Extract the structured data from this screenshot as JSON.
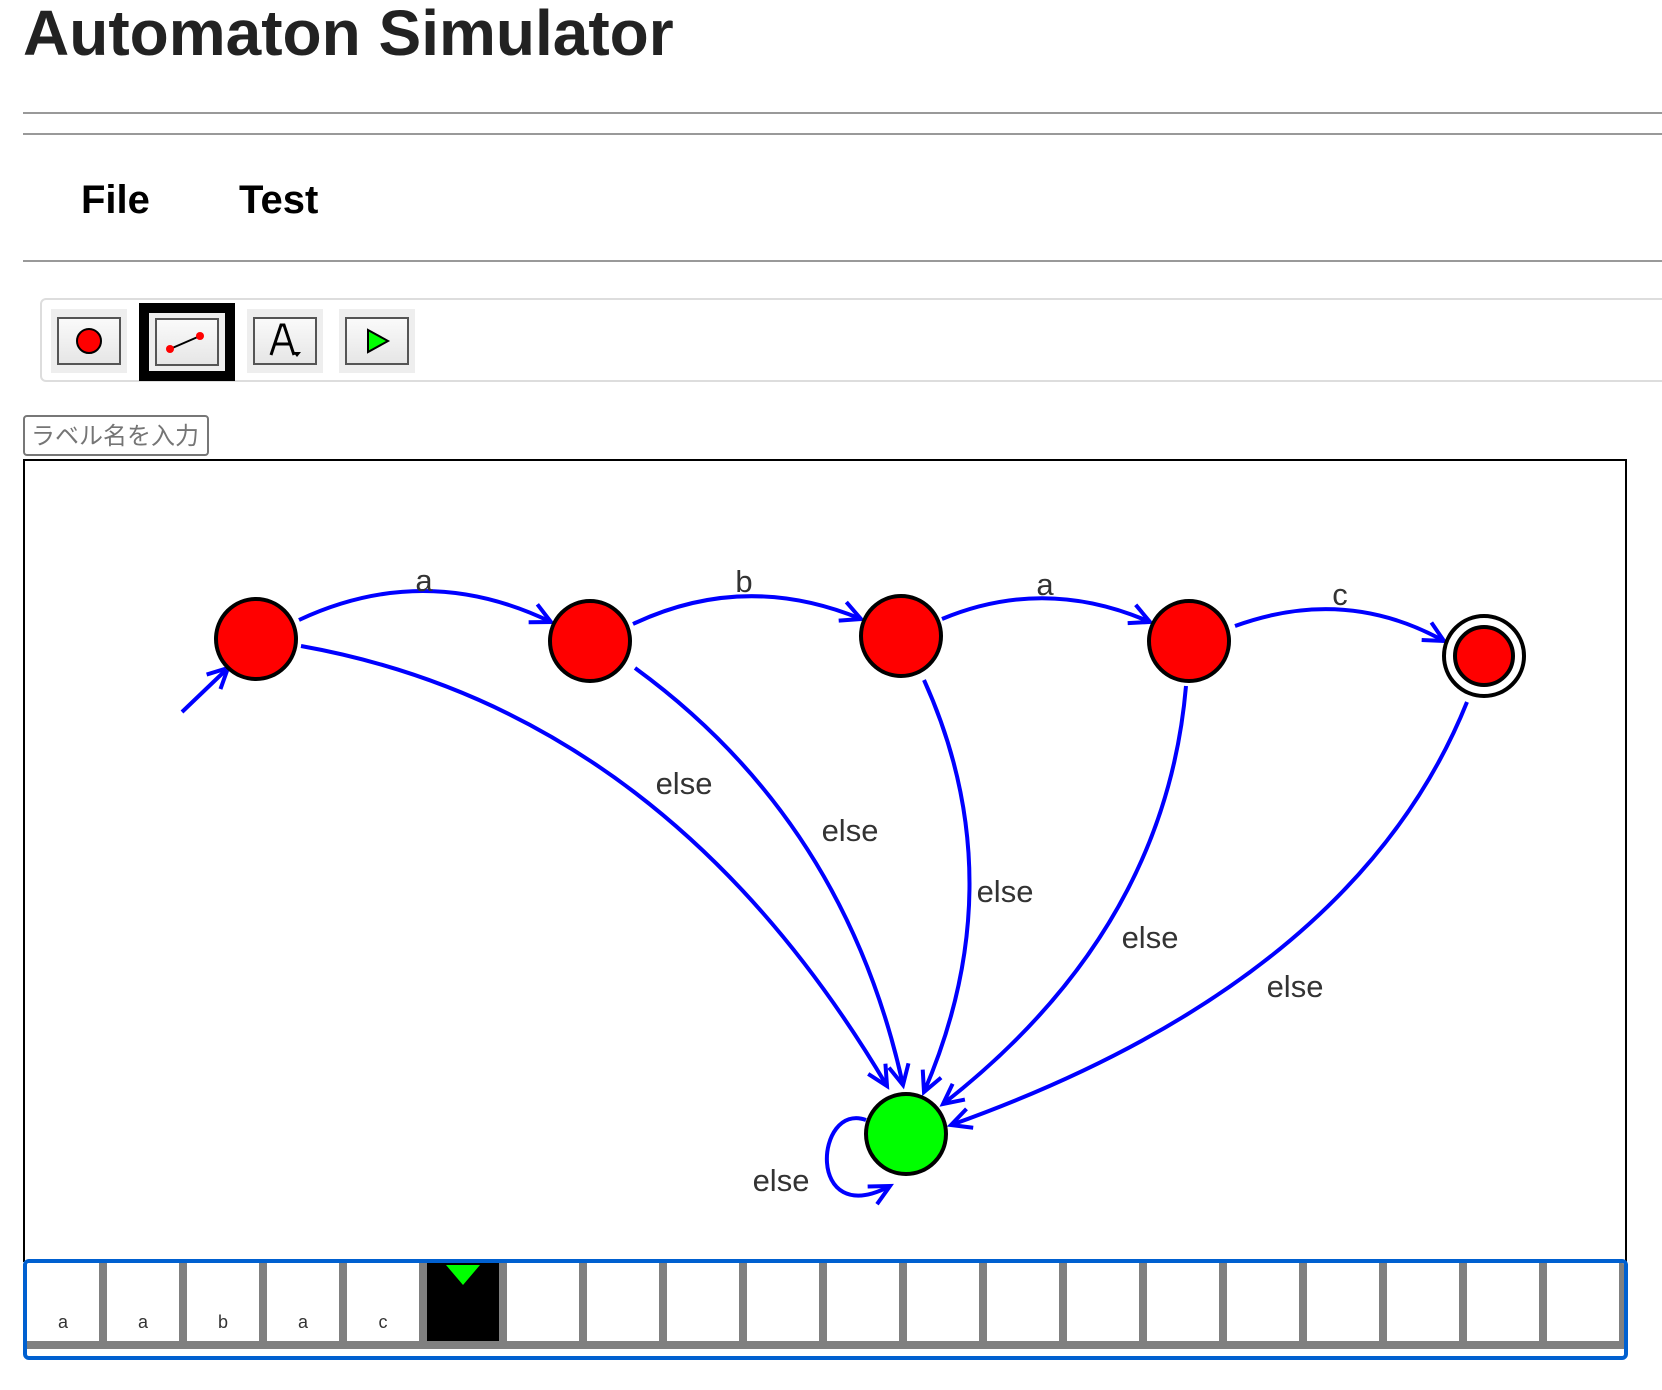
{
  "title": "Automaton Simulator",
  "menu": {
    "file": "File",
    "test": "Test"
  },
  "toolbar": {
    "tools": [
      "state-tool",
      "transition-tool",
      "label-tool",
      "run-tool"
    ],
    "selected": "transition-tool"
  },
  "label_input": {
    "placeholder": "ラベル名を入力"
  },
  "colors": {
    "state": "#ff0000",
    "sink_state": "#00ff00",
    "edge": "#0000ff",
    "tape_border": "#0060d0",
    "head": "#00ff00"
  },
  "automaton": {
    "states": [
      "q0",
      "q1",
      "q2",
      "q3",
      "q4",
      "sink"
    ],
    "initial": "q0",
    "accepting": [
      "q4"
    ],
    "transitions": [
      {
        "from": "q0",
        "to": "q1",
        "label": "a"
      },
      {
        "from": "q1",
        "to": "q2",
        "label": "b"
      },
      {
        "from": "q2",
        "to": "q3",
        "label": "a"
      },
      {
        "from": "q3",
        "to": "q4",
        "label": "c"
      },
      {
        "from": "q0",
        "to": "sink",
        "label": "else"
      },
      {
        "from": "q1",
        "to": "sink",
        "label": "else"
      },
      {
        "from": "q2",
        "to": "sink",
        "label": "else"
      },
      {
        "from": "q3",
        "to": "sink",
        "label": "else"
      },
      {
        "from": "q4",
        "to": "sink",
        "label": "else"
      },
      {
        "from": "sink",
        "to": "sink",
        "label": "else"
      }
    ]
  },
  "tape": {
    "cells": [
      "a",
      "a",
      "b",
      "a",
      "c",
      "",
      "",
      "",
      "",
      "",
      "",
      "",
      "",
      "",
      "",
      "",
      "",
      "",
      "",
      ""
    ],
    "head_index": 5
  }
}
